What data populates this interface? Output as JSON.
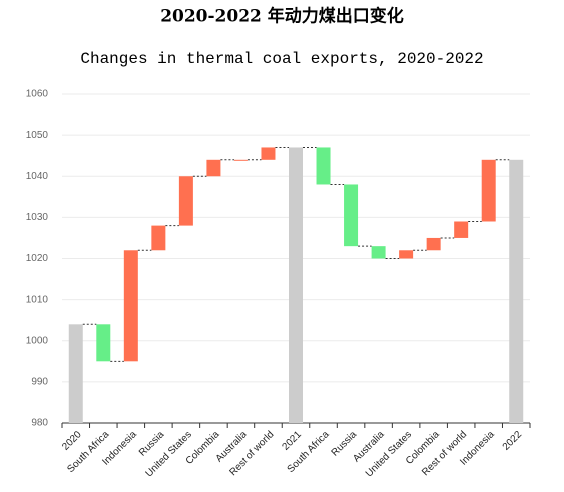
{
  "chart_data": {
    "type": "waterfall",
    "title": "2020-2022 年动力煤出口变化",
    "subtitle": "Changes in thermal coal exports, 2020-2022",
    "categories": [
      "2020",
      "South Africa",
      "Indonesia",
      "Russia",
      "United States",
      "Colombia",
      "Australia",
      "Rest of world",
      "2021",
      "South Africa",
      "Russia",
      "Australia",
      "United States",
      "Colombia",
      "Rest of world",
      "Indonesia",
      "2022"
    ],
    "values": [
      1004,
      -9,
      27,
      6,
      12,
      4,
      0,
      3,
      1047,
      -9,
      -15,
      -3,
      2,
      3,
      4,
      15,
      1044
    ],
    "colors": [
      "#cccccc",
      "#66ee88",
      "#ff7050",
      "#ff7050",
      "#ff7050",
      "#ff7050",
      "#ff7050",
      "#ff7050",
      "#cccccc",
      "#66ee88",
      "#66ee88",
      "#66ee88",
      "#ff7050",
      "#ff7050",
      "#ff7050",
      "#ff7050",
      "#cccccc"
    ],
    "total_color": "#cccccc",
    "ylim": [
      980,
      1060
    ],
    "yticks": [
      980,
      990,
      1000,
      1010,
      1020,
      1030,
      1040,
      1050,
      1060
    ],
    "grid": true
  }
}
